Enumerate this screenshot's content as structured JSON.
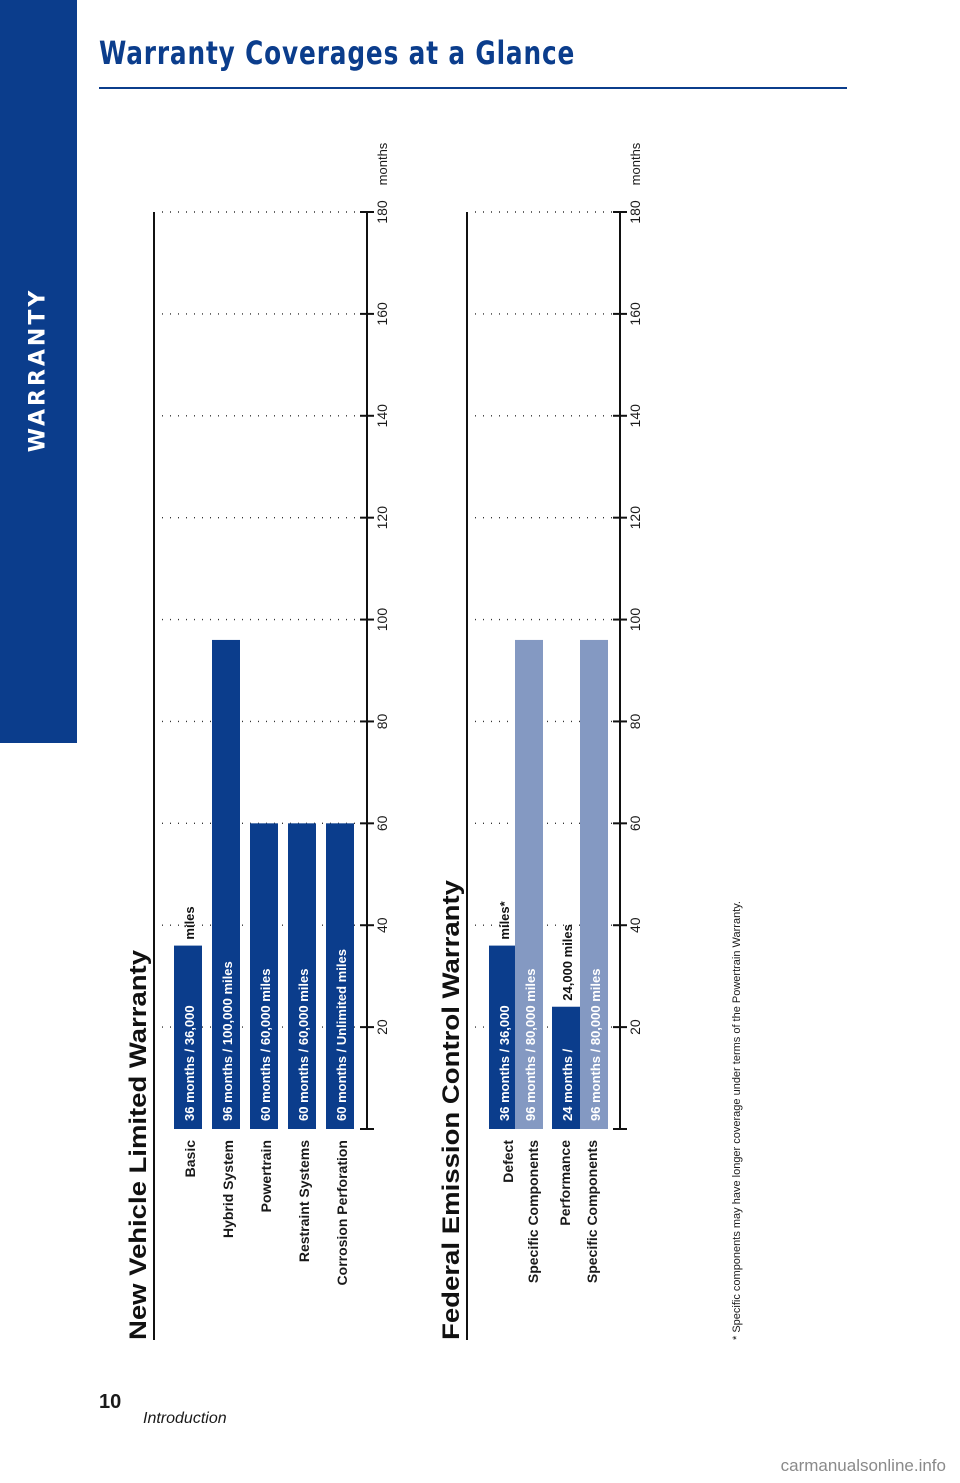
{
  "header": {
    "title": "Warranty Coverages at a Glance"
  },
  "sidebar": {
    "label": "WARRANTY"
  },
  "footer": {
    "page_number": "10",
    "section": "Introduction",
    "watermark": "carmanualsonline.info"
  },
  "footnote": "* Specific components may have longer coverage under terms of the Powertrain Warranty.",
  "colors": {
    "dark_blue": "#0b3d8c",
    "light_blue": "#8499c2"
  },
  "chart_data": [
    {
      "type": "bar",
      "title": "New Vehicle Limited Warranty",
      "xlabel": "months",
      "xlim": [
        0,
        180
      ],
      "ticks": [
        20,
        40,
        60,
        80,
        100,
        120,
        140,
        160,
        180
      ],
      "grid": true,
      "rows": [
        {
          "category": "Basic",
          "value": 36,
          "color": "#0b3d8c",
          "segments": [
            {
              "text": "36 months  /  36,000",
              "style": "bar"
            },
            {
              "text": "miles",
              "style": "plain"
            }
          ]
        },
        {
          "category": "Hybrid System",
          "value": 96,
          "color": "#0b3d8c",
          "segments": [
            {
              "text": "96 months  /  100,000 miles",
              "style": "bar"
            }
          ]
        },
        {
          "category": "Powertrain",
          "value": 60,
          "color": "#0b3d8c",
          "segments": [
            {
              "text": "60 months  /  60,000 miles",
              "style": "bar"
            }
          ]
        },
        {
          "category": "Restraint Systems",
          "value": 60,
          "color": "#0b3d8c",
          "segments": [
            {
              "text": "60 months  /  60,000 miles",
              "style": "bar"
            }
          ]
        },
        {
          "category": "Corrosion Perforation",
          "value": 60,
          "color": "#0b3d8c",
          "segments": [
            {
              "text": "60 months  /  Unlimited miles",
              "style": "bar"
            }
          ]
        }
      ]
    },
    {
      "type": "bar",
      "title": "Federal Emission Control Warranty",
      "xlabel": "months",
      "xlim": [
        0,
        180
      ],
      "ticks": [
        20,
        40,
        60,
        80,
        100,
        120,
        140,
        160,
        180
      ],
      "grid": true,
      "groups": [
        {
          "category_lines": [
            "Defect",
            "Specific Components"
          ]
        },
        {
          "category_lines": [
            "Performance",
            "Specific Components"
          ]
        }
      ],
      "rows": [
        {
          "group": 0,
          "value": 36,
          "color": "#0b3d8c",
          "segments": [
            {
              "text": "36 months  /  36,000",
              "style": "bar"
            },
            {
              "text": "miles*",
              "style": "plain"
            }
          ]
        },
        {
          "group": 0,
          "value": 96,
          "color": "#8499c2",
          "segments": [
            {
              "text": "96 months  /  80,000 miles",
              "style": "bar"
            }
          ]
        },
        {
          "group": 1,
          "value": 24,
          "color": "#0b3d8c",
          "segments": [
            {
              "text": "24 months  /",
              "style": "bar"
            },
            {
              "text": "24,000 miles",
              "style": "plain"
            }
          ]
        },
        {
          "group": 1,
          "value": 96,
          "color": "#8499c2",
          "segments": [
            {
              "text": "96 months  /  80,000 miles",
              "style": "bar"
            }
          ]
        }
      ]
    }
  ]
}
